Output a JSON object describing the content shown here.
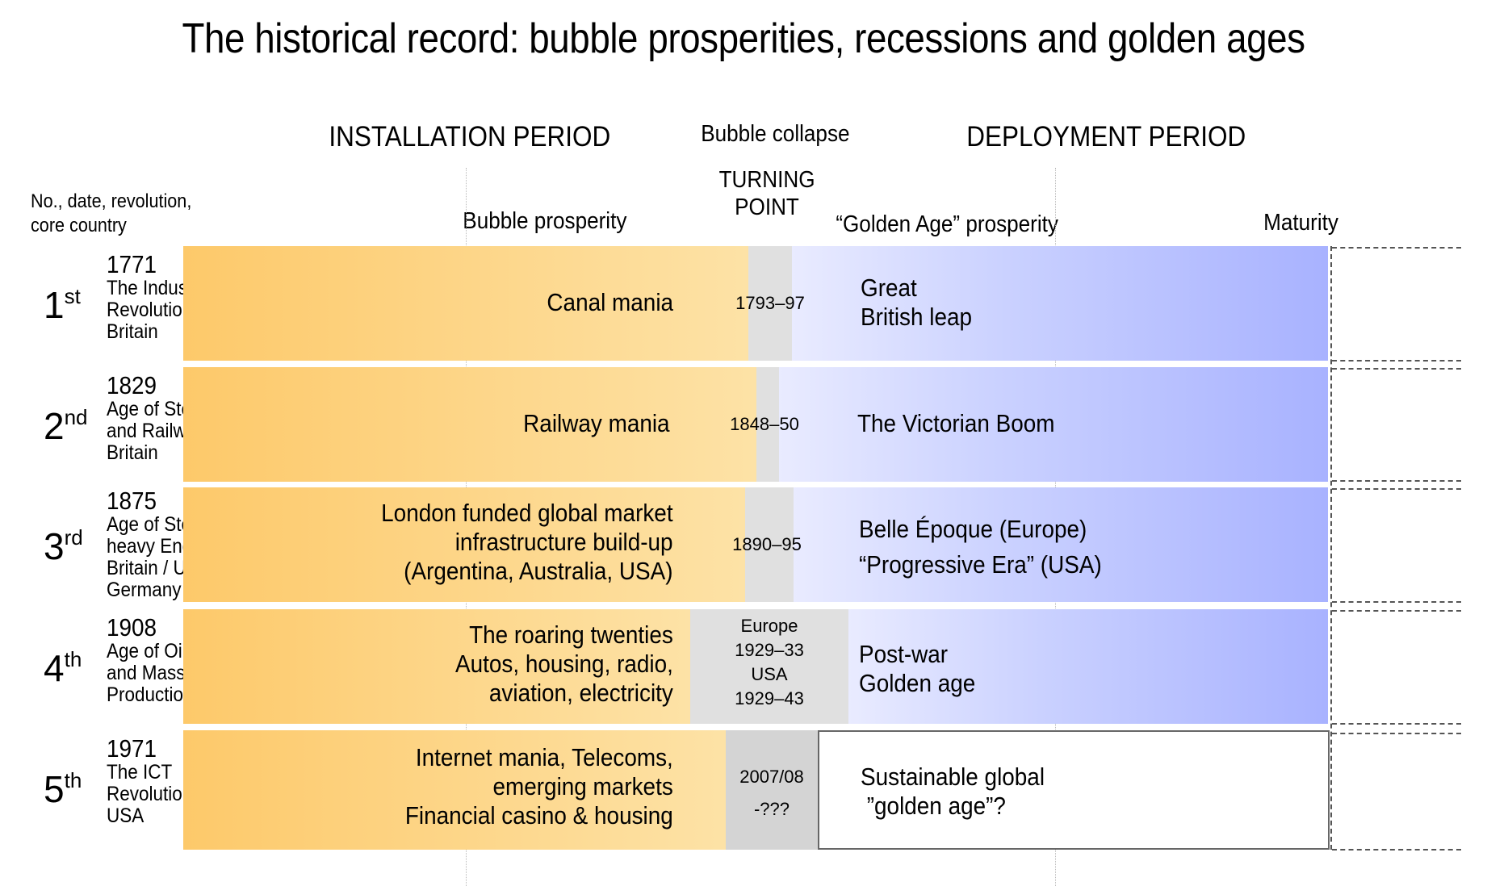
{
  "title": "The historical record: bubble prosperities, recessions and golden ages",
  "headers": {
    "installation": "INSTALLATION PERIOD",
    "bubble_collapse": "Bubble collapse",
    "deployment": "DEPLOYMENT PERIOD",
    "turning_point_1": "TURNING",
    "turning_point_2": "POINT",
    "left_col_1": "No., date, revolution,",
    "left_col_2": "core country",
    "bubble_prosperity": "Bubble prosperity",
    "golden_age_prosperity": "“Golden Age” prosperity",
    "maturity": "Maturity"
  },
  "rows": [
    {
      "ordinal": "1",
      "suffix": "st",
      "info": [
        "1771",
        "The Industrial",
        "Revolution",
        "Britain"
      ],
      "installation": [
        "Canal mania"
      ],
      "turning": [
        "1793–97"
      ],
      "deployment": [
        "Great",
        "British leap"
      ]
    },
    {
      "ordinal": "2",
      "suffix": "nd",
      "info": [
        "1829",
        "Age of Steam",
        "and Railways",
        "Britain"
      ],
      "installation": [
        "Railway mania"
      ],
      "turning": [
        "1848–50"
      ],
      "deployment": [
        "The Victorian  Boom"
      ]
    },
    {
      "ordinal": "3",
      "suffix": "rd",
      "info": [
        "1875",
        "Age of Steel and",
        "heavy Engineering",
        "Britain / USA",
        "Germany"
      ],
      "installation": [
        "London funded global market",
        "infrastructure build-up",
        "(Argentina, Australia, USA)"
      ],
      "turning": [
        "1890–95"
      ],
      "deployment": [
        "Belle Époque (Europe)",
        "“Progressive Era” (USA)"
      ]
    },
    {
      "ordinal": "4",
      "suffix": "th",
      "info": [
        "1908",
        "Age of Oil, Autos",
        "and Mass",
        "Production / USA"
      ],
      "installation": [
        "The roaring twenties",
        "Autos, housing, radio,",
        "aviation, electricity"
      ],
      "turning": [
        "Europe",
        "1929–33",
        "USA",
        "1929–43"
      ],
      "deployment": [
        "Post-war",
        "Golden age"
      ]
    },
    {
      "ordinal": "5",
      "suffix": "th",
      "info": [
        "1971",
        "The ICT",
        "Revolution",
        "USA"
      ],
      "installation": [
        "Internet mania, Telecoms,",
        "emerging markets",
        "Financial casino & housing"
      ],
      "turning": [
        "2007/08",
        "-???"
      ],
      "deployment": [
        "Sustainable global",
        " ”golden age”?"
      ]
    }
  ],
  "colors": {
    "installation": "#fdc96a",
    "turning": "#e0e0e0",
    "deployment": "#a8b2ff"
  }
}
